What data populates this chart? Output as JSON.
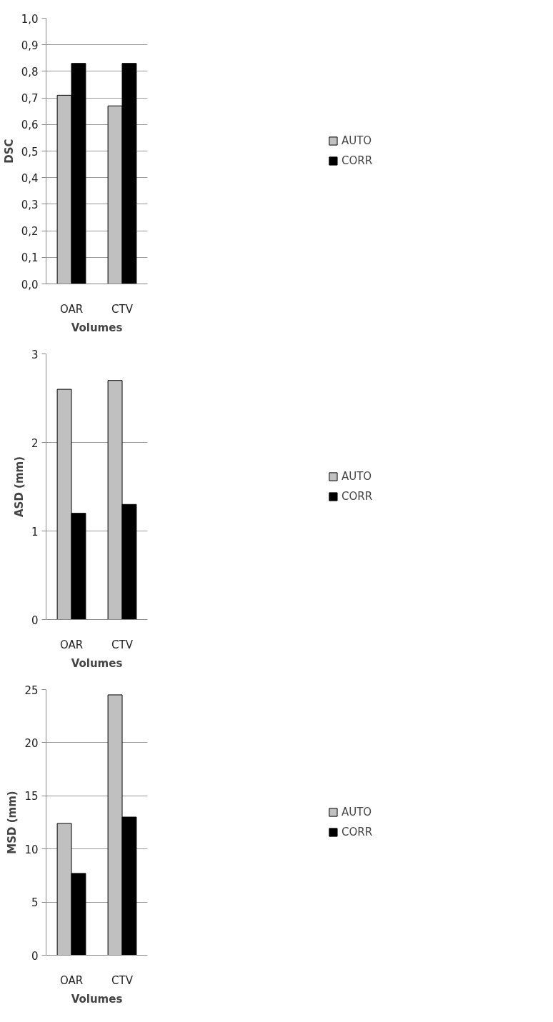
{
  "chart_data": [
    {
      "type": "bar",
      "xlabel": "Volumes",
      "ylabel": "DSC",
      "categories": [
        "OAR",
        "CTV"
      ],
      "series": [
        {
          "name": "AUTO",
          "color": "#c0c0c0",
          "values": [
            0.71,
            0.67
          ]
        },
        {
          "name": "CORR",
          "color": "#000000",
          "values": [
            0.83,
            0.83
          ]
        }
      ],
      "ylim": [
        0,
        1
      ],
      "yticks": [
        {
          "value": 0,
          "label": "0,0"
        },
        {
          "value": 0.1,
          "label": "0,1"
        },
        {
          "value": 0.2,
          "label": "0,2"
        },
        {
          "value": 0.3,
          "label": "0,3"
        },
        {
          "value": 0.4,
          "label": "0,4"
        },
        {
          "value": 0.5,
          "label": "0,5"
        },
        {
          "value": 0.6,
          "label": "0,6"
        },
        {
          "value": 0.7,
          "label": "0,7"
        },
        {
          "value": 0.8,
          "label": "0,8"
        },
        {
          "value": 0.9,
          "label": "0,9"
        },
        {
          "value": 1,
          "label": "1,0"
        }
      ],
      "grid": "y",
      "legend": "right"
    },
    {
      "type": "bar",
      "xlabel": "Volumes",
      "ylabel": "ASD (mm)",
      "categories": [
        "OAR",
        "CTV"
      ],
      "series": [
        {
          "name": "AUTO",
          "color": "#c0c0c0",
          "values": [
            2.6,
            2.7
          ]
        },
        {
          "name": "CORR",
          "color": "#000000",
          "values": [
            1.2,
            1.3
          ]
        }
      ],
      "ylim": [
        0,
        3
      ],
      "yticks": [
        0,
        1,
        2,
        3
      ],
      "grid": "y",
      "legend": "right"
    },
    {
      "type": "bar",
      "xlabel": "Volumes",
      "ylabel": "MSD (mm)",
      "categories": [
        "OAR",
        "CTV"
      ],
      "series": [
        {
          "name": "AUTO",
          "color": "#c0c0c0",
          "values": [
            12.4,
            24.5
          ]
        },
        {
          "name": "CORR",
          "color": "#000000",
          "values": [
            7.7,
            13.0
          ]
        }
      ],
      "ylim": [
        0,
        25
      ],
      "yticks": [
        0,
        5,
        10,
        15,
        20,
        25
      ],
      "grid": "y",
      "legend": "right"
    }
  ]
}
